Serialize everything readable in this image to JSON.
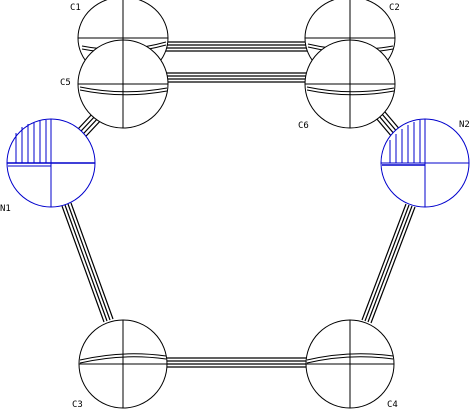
{
  "diagram": {
    "atoms": [
      {
        "id": "C1",
        "label": "C1",
        "element": "C"
      },
      {
        "id": "C2",
        "label": "C2",
        "element": "C"
      },
      {
        "id": "C5",
        "label": "C5",
        "element": "C"
      },
      {
        "id": "C6",
        "label": "C6",
        "element": "C"
      },
      {
        "id": "N1",
        "label": "N1",
        "element": "N"
      },
      {
        "id": "N2",
        "label": "N2",
        "element": "N"
      },
      {
        "id": "C3",
        "label": "C3",
        "element": "C"
      },
      {
        "id": "C4",
        "label": "C4",
        "element": "C"
      }
    ],
    "bonds": [
      [
        "C1",
        "C2"
      ],
      [
        "C5",
        "C6"
      ],
      [
        "C5",
        "N1"
      ],
      [
        "C6",
        "N2"
      ],
      [
        "N1",
        "C3"
      ],
      [
        "N2",
        "C4"
      ],
      [
        "C3",
        "C4"
      ]
    ],
    "colors": {
      "carbon_outline": "#000000",
      "nitrogen_outline": "#0000cc",
      "bond": "#000000",
      "background": "#ffffff"
    }
  }
}
